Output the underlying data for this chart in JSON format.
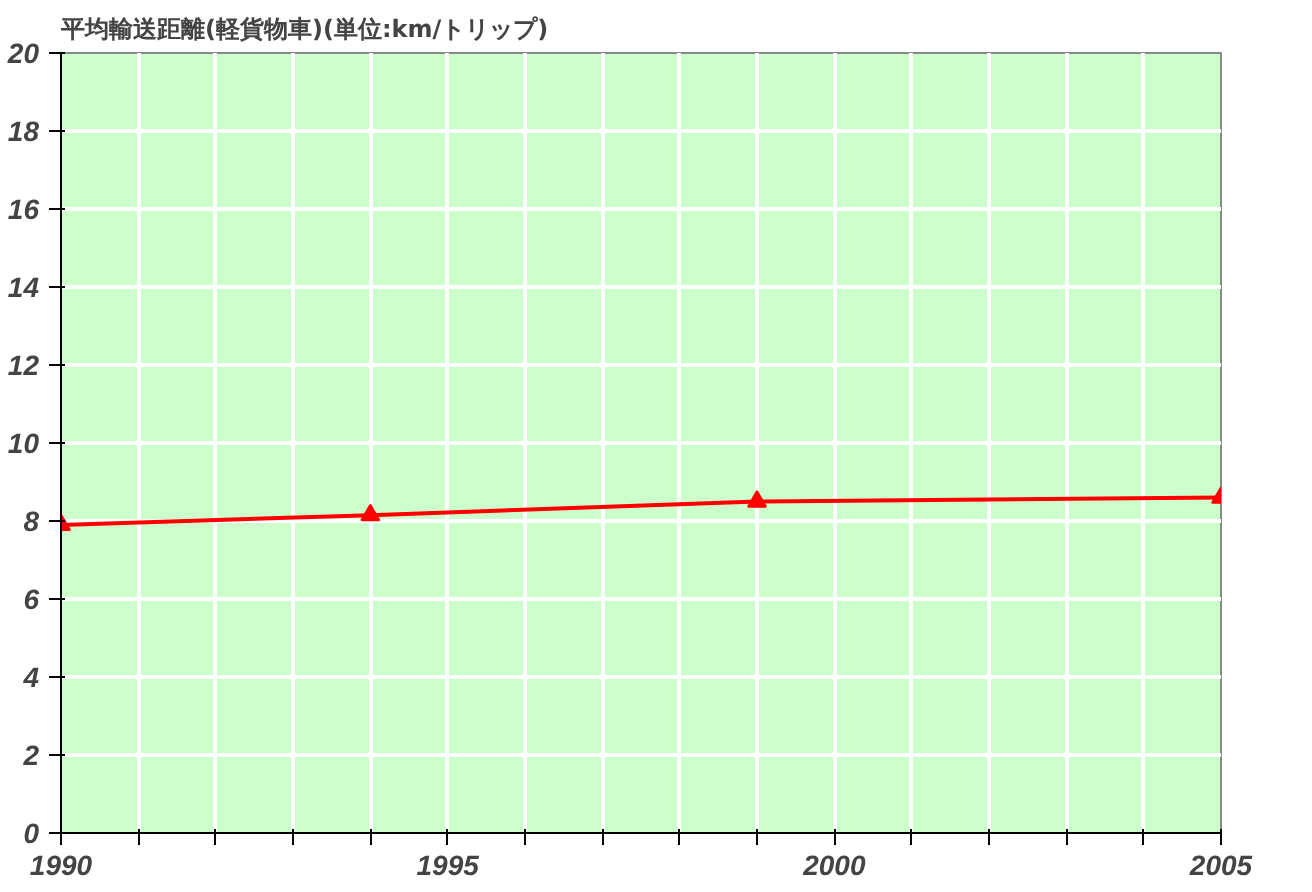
{
  "chart_data": {
    "type": "line",
    "title": "平均輸送距離(軽貨物車)(単位:km/トリップ)",
    "x": [
      1990,
      1994,
      1999,
      2005
    ],
    "series": [
      {
        "color": "#ff0000",
        "values": [
          7.9,
          8.15,
          8.5,
          8.6
        ]
      }
    ],
    "xlim": [
      1990,
      2005
    ],
    "xticks": [
      1990,
      {
        "value": 1991,
        "label": null
      },
      {
        "value": 1992,
        "label": null
      },
      {
        "value": 1993,
        "label": null
      },
      {
        "value": 1994,
        "label": null
      },
      1995,
      {
        "value": 1996,
        "label": null
      },
      {
        "value": 1997,
        "label": null
      },
      {
        "value": 1998,
        "label": null
      },
      {
        "value": 1999,
        "label": null
      },
      2000,
      {
        "value": 2001,
        "label": null
      },
      {
        "value": 2002,
        "label": null
      },
      {
        "value": 2003,
        "label": null
      },
      {
        "value": 2004,
        "label": null
      },
      2005
    ],
    "ylim": [
      0,
      20
    ],
    "yticks": [
      0,
      2,
      4,
      6,
      8,
      10,
      12,
      14,
      16,
      18,
      20
    ],
    "grid": true,
    "marker": "triangle",
    "line_style": "solid"
  }
}
